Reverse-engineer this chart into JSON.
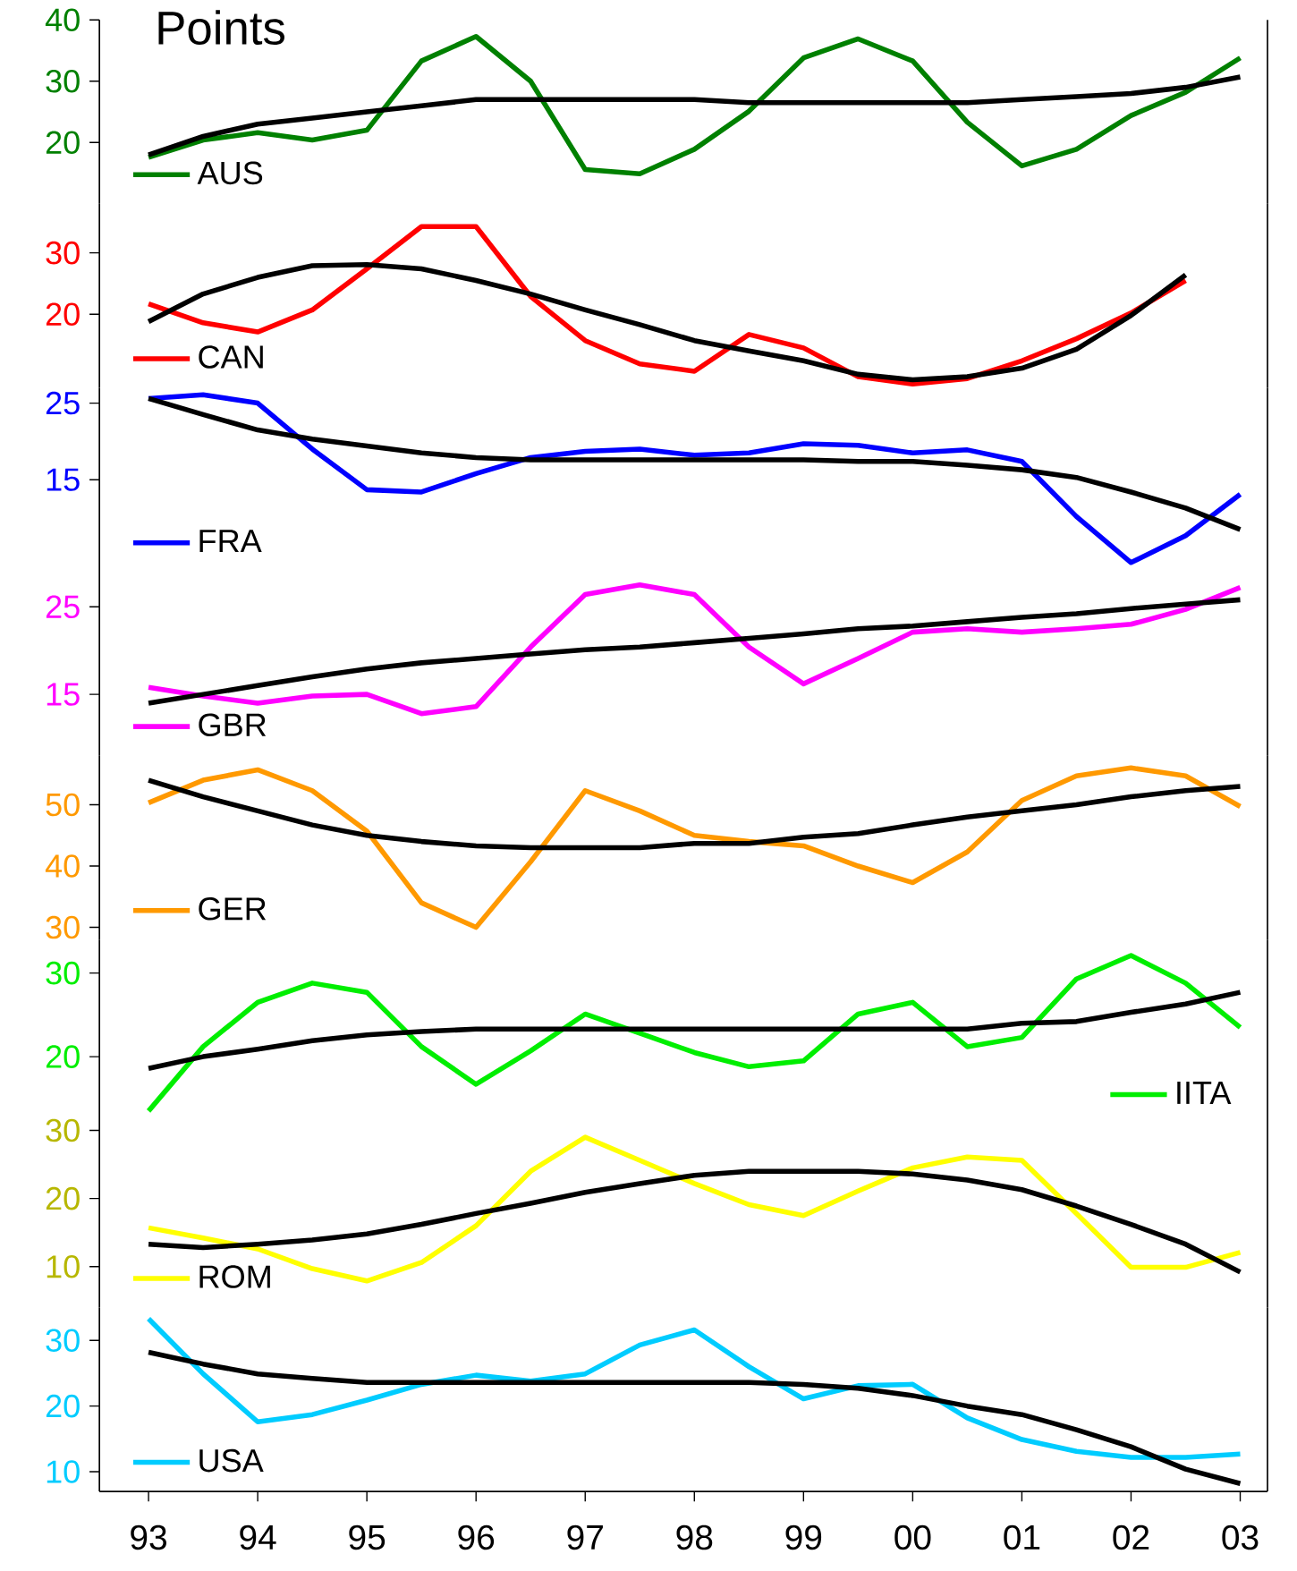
{
  "chart_data": [
    {
      "type": "line",
      "title": "Points",
      "x": [
        1993,
        1993.5,
        1994,
        1994.5,
        1995,
        1995.5,
        1996,
        1996.5,
        1997,
        1997.5,
        1998,
        1998.5,
        1999,
        1999.5,
        2000,
        2000.5,
        2001,
        2001.5,
        2002,
        2002.5,
        2003
      ],
      "xlim": [
        1992.55,
        2003.25
      ],
      "xticks": [
        {
          "value": 1993,
          "label": null
        },
        {
          "value": 1994,
          "label": null
        },
        {
          "value": 1995,
          "label": null
        },
        {
          "value": 1996,
          "label": null
        },
        {
          "value": 1997,
          "label": null
        },
        {
          "value": 1998,
          "label": null
        },
        {
          "value": 1999,
          "label": null
        },
        {
          "value": 2000,
          "label": null
        },
        {
          "value": 2001,
          "label": null
        },
        {
          "value": 2002,
          "label": null
        },
        {
          "value": 2003,
          "label": null
        }
      ],
      "ylim": [
        10,
        40
      ],
      "yticks": [
        20,
        30,
        40
      ],
      "tick_labels": "y",
      "legend": "bottom left",
      "series": [
        {
          "name": "AUS",
          "color": "#008000",
          "values": [
            17.6,
            20.4,
            21.6,
            20.4,
            22,
            33.3,
            37.3,
            30,
            15.6,
            14.9,
            18.9,
            25.1,
            33.8,
            36.9,
            33.3,
            23.3,
            16.2,
            18.9,
            24.4,
            28.2,
            33.8
          ]
        },
        {
          "color": "#000000",
          "values": [
            18,
            21,
            23,
            24,
            25,
            26,
            27,
            27,
            27,
            27,
            27,
            26.5,
            26.5,
            26.5,
            26.5,
            26.5,
            27,
            27.5,
            28,
            29,
            30.7
          ]
        }
      ]
    },
    {
      "type": "line",
      "x": [
        1993,
        1993.5,
        1994,
        1994.5,
        1995,
        1995.5,
        1996,
        1996.5,
        1997,
        1997.5,
        1998,
        1998.5,
        1999,
        1999.5,
        2000,
        2000.5,
        2001,
        2001.5,
        2002,
        2002.5
      ],
      "xlim": [
        1992.55,
        2003.25
      ],
      "xticks": [
        {
          "value": 1993,
          "label": null
        },
        {
          "value": 1994,
          "label": null
        },
        {
          "value": 1995,
          "label": null
        },
        {
          "value": 1996,
          "label": null
        },
        {
          "value": 1997,
          "label": null
        },
        {
          "value": 1998,
          "label": null
        },
        {
          "value": 1999,
          "label": null
        },
        {
          "value": 2000,
          "label": null
        },
        {
          "value": 2001,
          "label": null
        },
        {
          "value": 2002,
          "label": null
        },
        {
          "value": 2003,
          "label": null
        }
      ],
      "ylim": [
        8,
        38
      ],
      "yticks": [
        20,
        30
      ],
      "tick_labels": "y",
      "legend": "bottom left",
      "series": [
        {
          "name": "CAN",
          "color": "#ff0000",
          "values": [
            21.7,
            18.6,
            17.1,
            20.7,
            27.4,
            34.3,
            34.3,
            22.9,
            15.7,
            11.9,
            10.7,
            16.7,
            14.5,
            9.8,
            8.6,
            9.5,
            12.4,
            16,
            20.2,
            25.5
          ]
        },
        {
          "color": "#000000",
          "values": [
            18.8,
            23.3,
            26,
            27.9,
            28.1,
            27.4,
            25.5,
            23.3,
            20.7,
            18.3,
            15.7,
            14,
            12.4,
            10.2,
            9.3,
            9.8,
            11.2,
            14.3,
            19.8,
            26.4
          ]
        }
      ]
    },
    {
      "type": "line",
      "x": [
        1993,
        1993.5,
        1994,
        1994.5,
        1995,
        1995.5,
        1996,
        1996.5,
        1997,
        1997.5,
        1998,
        1998.5,
        1999,
        1999.5,
        2000,
        2000.5,
        2001,
        2001.5,
        2002,
        2002.5,
        2003
      ],
      "xlim": [
        1992.55,
        2003.25
      ],
      "xticks": [
        {
          "value": 1993,
          "label": null
        },
        {
          "value": 1994,
          "label": null
        },
        {
          "value": 1995,
          "label": null
        },
        {
          "value": 1996,
          "label": null
        },
        {
          "value": 1997,
          "label": null
        },
        {
          "value": 1998,
          "label": null
        },
        {
          "value": 1999,
          "label": null
        },
        {
          "value": 2000,
          "label": null
        },
        {
          "value": 2001,
          "label": null
        },
        {
          "value": 2002,
          "label": null
        },
        {
          "value": 2003,
          "label": null
        }
      ],
      "ylim": [
        3,
        27
      ],
      "yticks": [
        15,
        25
      ],
      "tick_labels": "y",
      "legend": "bottom left",
      "series": [
        {
          "name": "FRA",
          "color": "#0000ff",
          "values": [
            25.6,
            26.1,
            25,
            19,
            13.7,
            13.4,
            15.8,
            17.9,
            18.7,
            19,
            18.2,
            18.5,
            19.7,
            19.5,
            18.5,
            18.9,
            17.4,
            10.2,
            4.2,
            7.7,
            13.1
          ]
        },
        {
          "color": "#000000",
          "values": [
            25.6,
            23.5,
            21.5,
            20.3,
            19.4,
            18.5,
            17.9,
            17.6,
            17.6,
            17.6,
            17.6,
            17.6,
            17.6,
            17.4,
            17.4,
            16.9,
            16.3,
            15.3,
            13.4,
            11.3,
            8.5
          ]
        }
      ]
    },
    {
      "type": "line",
      "x": [
        1993,
        1993.5,
        1994,
        1994.5,
        1995,
        1995.5,
        1996,
        1996.5,
        1997,
        1997.5,
        1998,
        1998.5,
        1999,
        1999.5,
        2000,
        2000.5,
        2001,
        2001.5,
        2002,
        2002.5,
        2003
      ],
      "xlim": [
        1992.55,
        2003.25
      ],
      "xticks": [
        {
          "value": 1993,
          "label": null
        },
        {
          "value": 1994,
          "label": null
        },
        {
          "value": 1995,
          "label": null
        },
        {
          "value": 1996,
          "label": null
        },
        {
          "value": 1997,
          "label": null
        },
        {
          "value": 1998,
          "label": null
        },
        {
          "value": 1999,
          "label": null
        },
        {
          "value": 2000,
          "label": null
        },
        {
          "value": 2001,
          "label": null
        },
        {
          "value": 2002,
          "label": null
        },
        {
          "value": 2003,
          "label": null
        }
      ],
      "ylim": [
        8,
        29
      ],
      "yticks": [
        15,
        25
      ],
      "tick_labels": "y",
      "legend": "bottom left",
      "series": [
        {
          "name": "GBR",
          "color": "#ff00ff",
          "values": [
            15.8,
            14.8,
            14,
            14.8,
            15,
            12.8,
            13.6,
            20.4,
            26.4,
            27.5,
            26.4,
            20.4,
            16.2,
            19.1,
            22.1,
            22.5,
            22.1,
            22.5,
            23,
            24.7,
            27.2
          ]
        },
        {
          "color": "#000000",
          "values": [
            14,
            15,
            16,
            17,
            17.9,
            18.6,
            19.1,
            19.6,
            20.1,
            20.4,
            20.9,
            21.4,
            21.9,
            22.5,
            22.8,
            23.3,
            23.8,
            24.2,
            24.8,
            25.3,
            25.8
          ]
        }
      ]
    },
    {
      "type": "line",
      "x": [
        1993,
        1993.5,
        1994,
        1994.5,
        1995,
        1995.5,
        1996,
        1996.5,
        1997,
        1997.5,
        1998,
        1998.5,
        1999,
        1999.5,
        2000,
        2000.5,
        2001,
        2001.5,
        2002,
        2002.5,
        2003
      ],
      "xlim": [
        1992.55,
        2003.25
      ],
      "xticks": [
        {
          "value": 1993,
          "label": null
        },
        {
          "value": 1994,
          "label": null
        },
        {
          "value": 1995,
          "label": null
        },
        {
          "value": 1996,
          "label": null
        },
        {
          "value": 1997,
          "label": null
        },
        {
          "value": 1998,
          "label": null
        },
        {
          "value": 1999,
          "label": null
        },
        {
          "value": 2000,
          "label": null
        },
        {
          "value": 2001,
          "label": null
        },
        {
          "value": 2002,
          "label": null
        },
        {
          "value": 2003,
          "label": null
        }
      ],
      "ylim": [
        28,
        58
      ],
      "yticks": [
        30,
        40,
        50
      ],
      "tick_labels": "y",
      "legend": "bottom left",
      "series": [
        {
          "name": "GER",
          "color": "#ff9900",
          "values": [
            50.3,
            54,
            55.7,
            52.3,
            45.7,
            34,
            30,
            40.7,
            52.3,
            49,
            45,
            44,
            43.3,
            40,
            37.3,
            42.3,
            50.7,
            54.7,
            56,
            54.7,
            49.7
          ]
        },
        {
          "color": "#000000",
          "values": [
            54,
            51.3,
            49,
            46.7,
            45,
            44,
            43.3,
            43,
            43,
            43,
            43.7,
            43.7,
            44.7,
            45.3,
            46.7,
            48,
            49,
            50,
            51.3,
            52.3,
            53
          ]
        }
      ]
    },
    {
      "type": "line",
      "x": [
        1993,
        1993.5,
        1994,
        1994.5,
        1995,
        1995.5,
        1996,
        1996.5,
        1997,
        1997.5,
        1998,
        1998.5,
        1999,
        1999.5,
        2000,
        2000.5,
        2001,
        2001.5,
        2002,
        2002.5,
        2003
      ],
      "xlim": [
        1992.55,
        2003.25
      ],
      "xticks": [
        {
          "value": 1993,
          "label": null
        },
        {
          "value": 1994,
          "label": null
        },
        {
          "value": 1995,
          "label": null
        },
        {
          "value": 1996,
          "label": null
        },
        {
          "value": 1997,
          "label": null
        },
        {
          "value": 1998,
          "label": null
        },
        {
          "value": 1999,
          "label": null
        },
        {
          "value": 2000,
          "label": null
        },
        {
          "value": 2001,
          "label": null
        },
        {
          "value": 2002,
          "label": null
        },
        {
          "value": 2003,
          "label": null
        }
      ],
      "ylim": [
        12,
        34
      ],
      "yticks": [
        20,
        30
      ],
      "tick_labels": "y",
      "legend": "bottom right",
      "series": [
        {
          "name": "IITA",
          "color": "#00ee00",
          "values": [
            13.5,
            21.2,
            26.5,
            28.8,
            27.7,
            21.2,
            16.7,
            20.7,
            25.1,
            22.8,
            20.5,
            18.8,
            19.5,
            25.1,
            26.5,
            21.2,
            22.3,
            29.3,
            32.1,
            28.8,
            23.5
          ]
        },
        {
          "color": "#000000",
          "values": [
            18.6,
            20,
            20.9,
            21.9,
            22.6,
            23,
            23.3,
            23.3,
            23.3,
            23.3,
            23.3,
            23.3,
            23.3,
            23.3,
            23.3,
            23.3,
            24,
            24.2,
            25.3,
            26.3,
            27.7
          ]
        }
      ]
    },
    {
      "type": "line",
      "x": [
        1993,
        1993.5,
        1994,
        1994.5,
        1995,
        1995.5,
        1996,
        1996.5,
        1997,
        1997.5,
        1998,
        1998.5,
        1999,
        1999.5,
        2000,
        2000.5,
        2001,
        2001.5,
        2002,
        2002.5,
        2003
      ],
      "xlim": [
        1992.55,
        2003.25
      ],
      "xticks": [
        {
          "value": 1993,
          "label": null
        },
        {
          "value": 1994,
          "label": null
        },
        {
          "value": 1995,
          "label": null
        },
        {
          "value": 1996,
          "label": null
        },
        {
          "value": 1997,
          "label": null
        },
        {
          "value": 1998,
          "label": null
        },
        {
          "value": 1999,
          "label": null
        },
        {
          "value": 2000,
          "label": null
        },
        {
          "value": 2001,
          "label": null
        },
        {
          "value": 2002,
          "label": null
        },
        {
          "value": 2003,
          "label": null
        }
      ],
      "ylim": [
        4,
        31
      ],
      "yticks": [
        10,
        20,
        30
      ],
      "tick_labels": "y",
      "legend": "bottom left",
      "series": [
        {
          "name": "ROM",
          "color": "#ffff00",
          "values": [
            15.7,
            14.2,
            12.6,
            9.7,
            7.9,
            10.6,
            16,
            24,
            29,
            25.6,
            22.2,
            19.1,
            17.5,
            21.1,
            24.5,
            26.1,
            25.6,
            17.8,
            9.9,
            9.9,
            12.1
          ]
        },
        {
          "color": "#000000",
          "values": [
            13.3,
            12.8,
            13.3,
            13.9,
            14.8,
            16.2,
            17.8,
            19.3,
            20.9,
            22.2,
            23.4,
            24,
            24,
            24,
            23.6,
            22.7,
            21.3,
            18.9,
            16.2,
            13.3,
            9.2
          ]
        }
      ]
    },
    {
      "type": "line",
      "x": [
        1993,
        1993.5,
        1994,
        1994.5,
        1995,
        1995.5,
        1996,
        1996.5,
        1997,
        1997.5,
        1998,
        1998.5,
        1999,
        1999.5,
        2000,
        2000.5,
        2001,
        2001.5,
        2002,
        2002.5,
        2003
      ],
      "xlim": [
        1992.55,
        2003.25
      ],
      "ylim": [
        7,
        35
      ],
      "yticks": [
        10,
        20,
        30
      ],
      "legend": "bottom left",
      "xticks": [
        {
          "value": 1993,
          "label": "93"
        },
        {
          "value": 1994,
          "label": "94"
        },
        {
          "value": 1995,
          "label": "95"
        },
        {
          "value": 1996,
          "label": "96"
        },
        {
          "value": 1997,
          "label": "97"
        },
        {
          "value": 1998,
          "label": "98"
        },
        {
          "value": 1999,
          "label": "99"
        },
        {
          "value": 2000,
          "label": "00"
        },
        {
          "value": 2001,
          "label": "01"
        },
        {
          "value": 2002,
          "label": "02"
        },
        {
          "value": 2003,
          "label": "03"
        }
      ],
      "series": [
        {
          "name": "USA",
          "color": "#00ccff",
          "values": [
            33.3,
            24.9,
            17.6,
            18.7,
            20.9,
            23.3,
            24.7,
            23.8,
            24.9,
            29.3,
            31.6,
            26,
            21.1,
            23.1,
            23.3,
            18.2,
            14.9,
            13.1,
            12.2,
            12.2,
            12.7
          ]
        },
        {
          "color": "#000000",
          "values": [
            28.2,
            26.4,
            24.9,
            24.2,
            23.6,
            23.6,
            23.6,
            23.6,
            23.6,
            23.6,
            23.6,
            23.6,
            23.3,
            22.7,
            21.6,
            20,
            18.7,
            16.4,
            13.8,
            10.4,
            8.2
          ]
        }
      ]
    }
  ]
}
